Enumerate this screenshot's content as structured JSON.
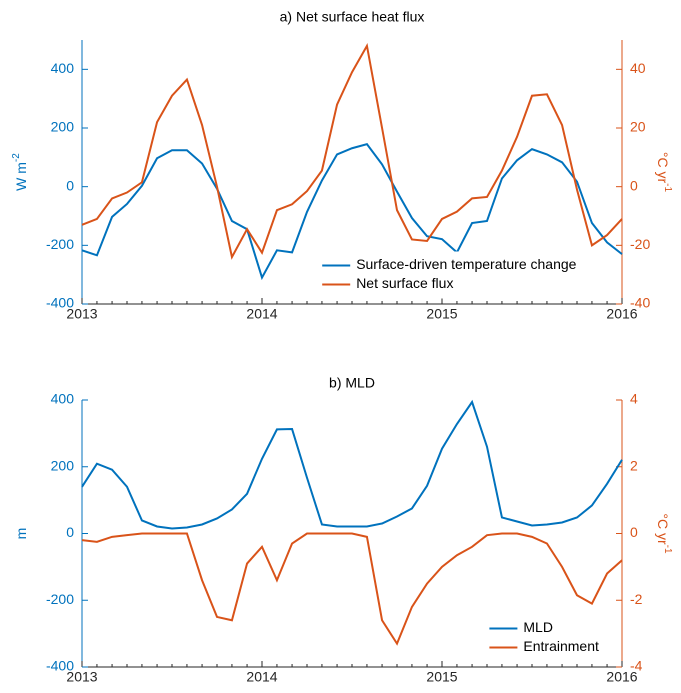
{
  "chart_data": [
    {
      "type": "line",
      "title": "a) Net surface heat flux",
      "ylabel": {
        "text": "W m",
        "sup": "-2"
      },
      "y2label": {
        "text": "°C yr",
        "sup": "-1"
      },
      "x": [
        2013,
        2013.083,
        2013.167,
        2013.25,
        2013.333,
        2013.417,
        2013.5,
        2013.583,
        2013.667,
        2013.75,
        2013.833,
        2013.917,
        2014,
        2014.083,
        2014.167,
        2014.25,
        2014.333,
        2014.417,
        2014.5,
        2014.583,
        2014.667,
        2014.75,
        2014.833,
        2014.917,
        2015,
        2015.083,
        2015.167,
        2015.25,
        2015.333,
        2015.417,
        2015.5,
        2015.583,
        2015.667,
        2015.75,
        2015.833,
        2015.917,
        2016
      ],
      "xlim": [
        2013,
        2016
      ],
      "xticks": [
        2013,
        2014,
        2015,
        2016
      ],
      "ylim": [
        -400,
        500
      ],
      "yticks": [
        -400,
        -200,
        0,
        200,
        400
      ],
      "y2lim": [
        -40,
        50
      ],
      "y2ticks": [
        -40,
        -20,
        0,
        20,
        40
      ],
      "legend": "lower right",
      "series": [
        {
          "name": "Surface-driven temperature change",
          "color": "#0072BD",
          "axis": "y",
          "values": [
            -217,
            -234,
            -103,
            -59,
            3,
            97,
            124,
            124,
            79,
            -7,
            -117,
            -145,
            -310,
            -217,
            -224,
            -86,
            21,
            110,
            131,
            145,
            76,
            -17,
            -107,
            -169,
            -179,
            -224,
            -124,
            -117,
            28,
            90,
            128,
            110,
            83,
            17,
            -124,
            -190,
            -230
          ]
        },
        {
          "name": "Net surface flux",
          "color": "#D95319",
          "axis": "y2",
          "values": [
            -13,
            -11,
            -4,
            -2,
            1.5,
            22,
            31,
            36.5,
            21,
            0,
            -24,
            -14.5,
            -22.5,
            -8,
            -6,
            -1.5,
            5.5,
            28,
            39,
            48,
            20,
            -8,
            -18,
            -18.5,
            -11,
            -8.5,
            -4,
            -3.5,
            5.5,
            17,
            31,
            31.5,
            21,
            -1,
            -20,
            -16.5,
            -11
          ]
        }
      ]
    },
    {
      "type": "line",
      "title": "b) MLD",
      "ylabel": {
        "text": "m"
      },
      "y2label": {
        "text": "°C yr",
        "sup": "-1"
      },
      "x": [
        2013,
        2013.083,
        2013.167,
        2013.25,
        2013.333,
        2013.417,
        2013.5,
        2013.583,
        2013.667,
        2013.75,
        2013.833,
        2013.917,
        2014,
        2014.083,
        2014.167,
        2014.25,
        2014.333,
        2014.417,
        2014.5,
        2014.583,
        2014.667,
        2014.75,
        2014.833,
        2014.917,
        2015,
        2015.083,
        2015.167,
        2015.25,
        2015.333,
        2015.417,
        2015.5,
        2015.583,
        2015.667,
        2015.75,
        2015.833,
        2015.917,
        2016
      ],
      "xlim": [
        2013,
        2016
      ],
      "xticks": [
        2013,
        2014,
        2015,
        2016
      ],
      "ylim": [
        -400,
        400
      ],
      "yticks": [
        -400,
        -200,
        0,
        200,
        400
      ],
      "y2lim": [
        -4,
        4
      ],
      "y2ticks": [
        -4,
        -2,
        0,
        2,
        4
      ],
      "legend": "lower right",
      "series": [
        {
          "name": "MLD",
          "color": "#0072BD",
          "axis": "y",
          "values": [
            140,
            209,
            191,
            140,
            39,
            21,
            15,
            18,
            27,
            45,
            72,
            119,
            224,
            312,
            313,
            167,
            27,
            21,
            21,
            21,
            30,
            51,
            75,
            143,
            254,
            328,
            394,
            260,
            48,
            36,
            24,
            27,
            33,
            48,
            84,
            149,
            221
          ]
        },
        {
          "name": "Entrainment",
          "color": "#D95319",
          "axis": "y2",
          "values": [
            -0.2,
            -0.25,
            -0.1,
            -0.05,
            0,
            0,
            0,
            0,
            -1.4,
            -2.5,
            -2.6,
            -0.9,
            -0.4,
            -1.4,
            -0.3,
            0,
            0,
            0,
            0,
            -0.1,
            -2.6,
            -3.3,
            -2.2,
            -1.5,
            -1.0,
            -0.65,
            -0.4,
            -0.05,
            0,
            0,
            -0.1,
            -0.3,
            -1.0,
            -1.85,
            -2.1,
            -1.2,
            -0.8
          ]
        }
      ]
    }
  ]
}
